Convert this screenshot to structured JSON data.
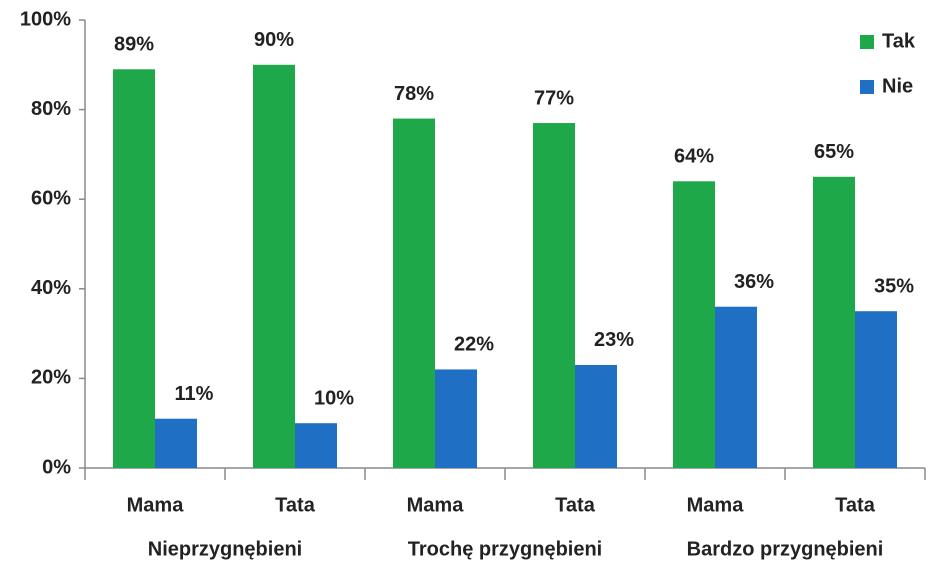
{
  "chart_data": {
    "type": "bar",
    "categories": [
      "Mama",
      "Tata",
      "Mama",
      "Tata",
      "Mama",
      "Tata"
    ],
    "groups": [
      "Nieprzygnębieni",
      "Trochę przygnębieni",
      "Bardzo przygnębieni"
    ],
    "series": [
      {
        "name": "Tak",
        "color": "#1fa84a",
        "values": [
          89,
          90,
          78,
          77,
          64,
          65
        ],
        "value_labels": [
          "89%",
          "90%",
          "78%",
          "77%",
          "64%",
          "65%"
        ]
      },
      {
        "name": "Nie",
        "color": "#1f6fc4",
        "values": [
          11,
          10,
          22,
          23,
          36,
          35
        ],
        "value_labels": [
          "11%",
          "10%",
          "22%",
          "23%",
          "36%",
          "35%"
        ]
      }
    ],
    "ylim": [
      0,
      100
    ],
    "yticks": [
      {
        "value": 0,
        "label": "0%"
      },
      {
        "value": 20,
        "label": "20%"
      },
      {
        "value": 40,
        "label": "40%"
      },
      {
        "value": 60,
        "label": "60%"
      },
      {
        "value": 80,
        "label": "80%"
      },
      {
        "value": 100,
        "label": "100%"
      }
    ],
    "legend": "top-right"
  }
}
